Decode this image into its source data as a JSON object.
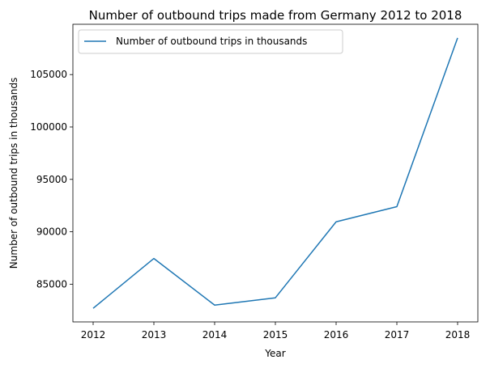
{
  "chart_data": {
    "type": "line",
    "title": "Number of outbound trips made from Germany 2012 to 2018",
    "xlabel": "Year",
    "ylabel": "Number of outbound trips in thousands",
    "x": [
      "2012",
      "2013",
      "2014",
      "2015",
      "2016",
      "2017",
      "2018"
    ],
    "series": [
      {
        "name": "Number of outbound trips in thousands",
        "values": [
          82700,
          87450,
          83000,
          83700,
          90950,
          92400,
          108500
        ],
        "color": "#1f77b4"
      }
    ],
    "ylim": [
      81400,
      109800
    ],
    "yticks": [
      85000,
      90000,
      95000,
      100000,
      105000
    ],
    "legend_position": "top-left",
    "grid": false
  }
}
